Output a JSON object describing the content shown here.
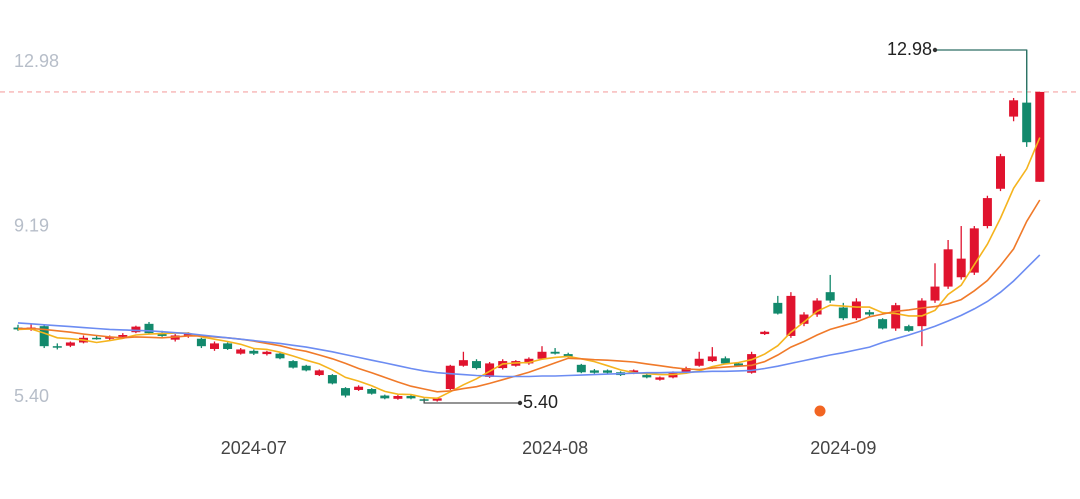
{
  "chart_data": {
    "type": "candlestick",
    "categories": [
      null,
      null,
      null,
      null,
      null,
      null,
      null,
      null,
      null,
      null,
      null,
      null,
      null,
      null,
      null,
      null,
      null,
      null,
      "2024-07",
      null,
      null,
      null,
      null,
      null,
      null,
      null,
      null,
      null,
      null,
      null,
      null,
      null,
      null,
      null,
      null,
      null,
      null,
      null,
      null,
      null,
      null,
      "2024-08",
      null,
      null,
      null,
      null,
      null,
      null,
      null,
      null,
      null,
      null,
      null,
      null,
      null,
      null,
      null,
      null,
      null,
      null,
      null,
      null,
      null,
      "2024-09",
      null,
      null,
      null,
      null,
      null,
      null,
      null,
      null,
      null,
      null,
      null,
      null,
      null,
      null,
      null
    ],
    "open": [
      7.02,
      6.98,
      7.05,
      6.62,
      6.63,
      6.7,
      6.8,
      6.78,
      6.82,
      6.92,
      7.1,
      6.9,
      6.76,
      6.85,
      6.78,
      6.56,
      6.68,
      6.46,
      6.52,
      6.45,
      6.46,
      6.3,
      6.2,
      6.0,
      6.0,
      5.72,
      5.68,
      5.7,
      5.56,
      5.49,
      5.55,
      5.48,
      5.45,
      5.7,
      6.2,
      6.3,
      5.96,
      6.15,
      6.2,
      6.25,
      6.35,
      6.5,
      6.45,
      6.22,
      6.1,
      6.1,
      6.06,
      6.04,
      6.0,
      5.9,
      5.95,
      6.05,
      6.2,
      6.3,
      6.36,
      6.25,
      6.05,
      6.88,
      7.55,
      6.84,
      7.1,
      7.3,
      7.78,
      7.45,
      7.22,
      7.35,
      7.2,
      7.0,
      7.05,
      7.05,
      7.6,
      7.9,
      8.1,
      8.2,
      9.2,
      10.0,
      11.55,
      11.85,
      10.15
    ],
    "high": [
      7.08,
      7.1,
      7.08,
      6.68,
      6.72,
      6.85,
      6.86,
      6.85,
      6.9,
      7.06,
      7.14,
      6.95,
      6.88,
      6.92,
      6.8,
      6.72,
      6.7,
      6.58,
      6.55,
      6.52,
      6.48,
      6.32,
      6.22,
      6.12,
      6.02,
      5.74,
      5.78,
      5.72,
      5.58,
      5.57,
      5.58,
      5.5,
      5.52,
      6.22,
      6.5,
      6.34,
      6.28,
      6.34,
      6.32,
      6.38,
      6.62,
      6.58,
      6.48,
      6.24,
      6.13,
      6.12,
      6.08,
      6.12,
      6.02,
      5.97,
      6.08,
      6.18,
      6.5,
      6.6,
      6.4,
      6.28,
      6.5,
      6.95,
      7.7,
      7.78,
      7.35,
      7.65,
      8.15,
      7.55,
      7.65,
      7.4,
      7.22,
      7.55,
      7.08,
      7.65,
      8.4,
      8.9,
      9.2,
      9.2,
      9.85,
      10.75,
      11.95,
      12.98,
      12.08
    ],
    "low": [
      6.95,
      6.95,
      6.58,
      6.55,
      6.6,
      6.68,
      6.76,
      6.74,
      6.8,
      6.9,
      6.88,
      6.82,
      6.72,
      6.8,
      6.58,
      6.52,
      6.54,
      6.44,
      6.43,
      6.42,
      6.34,
      6.14,
      6.08,
      5.98,
      5.8,
      5.52,
      5.66,
      5.58,
      5.48,
      5.47,
      5.48,
      5.4,
      5.43,
      5.68,
      6.18,
      6.12,
      5.94,
      6.12,
      6.18,
      6.22,
      6.33,
      6.44,
      6.38,
      6.04,
      6.03,
      6.02,
      5.98,
      6.02,
      5.93,
      5.88,
      5.93,
      6.03,
      6.18,
      6.28,
      6.23,
      6.18,
      6.03,
      6.86,
      7.3,
      6.8,
      7.05,
      7.25,
      7.55,
      7.18,
      7.18,
      7.25,
      6.98,
      6.95,
      6.93,
      6.62,
      7.55,
      7.85,
      8.05,
      8.15,
      9.15,
      9.95,
      11.45,
      10.9,
      10.15
    ],
    "close": [
      6.98,
      7.02,
      6.62,
      6.6,
      6.7,
      6.8,
      6.78,
      6.82,
      6.86,
      7.04,
      6.9,
      6.84,
      6.85,
      6.88,
      6.62,
      6.68,
      6.56,
      6.55,
      6.46,
      6.5,
      6.36,
      6.16,
      6.1,
      6.1,
      5.82,
      5.56,
      5.75,
      5.6,
      5.5,
      5.55,
      5.5,
      5.45,
      5.5,
      6.2,
      6.32,
      6.15,
      6.25,
      6.3,
      6.3,
      6.35,
      6.5,
      6.46,
      6.4,
      6.06,
      6.05,
      6.05,
      6.0,
      6.1,
      5.95,
      5.95,
      6.05,
      6.15,
      6.35,
      6.4,
      6.25,
      6.2,
      6.45,
      6.93,
      7.32,
      7.7,
      7.3,
      7.6,
      7.6,
      7.22,
      7.58,
      7.3,
      7.0,
      7.5,
      6.95,
      7.6,
      7.9,
      8.7,
      8.5,
      9.15,
      9.8,
      10.7,
      11.9,
      11.0,
      12.08
    ],
    "up_color": "#e0132e",
    "down_color": "#12896c",
    "lines": [
      {
        "color": "#f5b41e",
        "values": [
          6.98,
          6.99,
          6.9,
          6.8,
          6.78,
          6.75,
          6.7,
          6.74,
          6.79,
          6.86,
          6.88,
          6.89,
          6.9,
          6.9,
          6.82,
          6.77,
          6.72,
          6.66,
          6.57,
          6.55,
          6.49,
          6.41,
          6.32,
          6.24,
          6.11,
          5.95,
          5.87,
          5.77,
          5.65,
          5.59,
          5.58,
          5.52,
          5.5,
          5.64,
          5.79,
          5.92,
          6.08,
          6.24,
          6.26,
          6.27,
          6.34,
          6.38,
          6.4,
          6.35,
          6.29,
          6.2,
          6.11,
          6.05,
          6.03,
          6.01,
          6.01,
          6.04,
          6.09,
          6.18,
          6.24,
          6.27,
          6.33,
          6.45,
          6.63,
          6.92,
          7.14,
          7.37,
          7.5,
          7.48,
          7.46,
          7.46,
          7.34,
          7.32,
          7.27,
          7.27,
          7.39,
          7.73,
          7.93,
          8.37,
          8.81,
          9.37,
          10.01,
          10.43,
          11.1
        ]
      },
      {
        "color": "#f07a2a",
        "values": [
          7.0,
          7.0,
          6.98,
          6.95,
          6.92,
          6.88,
          6.85,
          6.82,
          6.8,
          6.82,
          6.81,
          6.8,
          6.82,
          6.84,
          6.84,
          6.82,
          6.8,
          6.77,
          6.73,
          6.68,
          6.63,
          6.56,
          6.51,
          6.43,
          6.35,
          6.25,
          6.14,
          6.05,
          5.95,
          5.85,
          5.76,
          5.7,
          5.64,
          5.66,
          5.71,
          5.75,
          5.82,
          5.9,
          5.98,
          6.06,
          6.16,
          6.26,
          6.36,
          6.35,
          6.33,
          6.32,
          6.3,
          6.28,
          6.24,
          6.2,
          6.16,
          6.13,
          6.12,
          6.15,
          6.17,
          6.19,
          6.21,
          6.29,
          6.43,
          6.6,
          6.72,
          6.86,
          6.98,
          7.06,
          7.14,
          7.25,
          7.31,
          7.37,
          7.4,
          7.44,
          7.47,
          7.53,
          7.62,
          7.81,
          8.03,
          8.35,
          8.71,
          9.3,
          9.76
        ]
      },
      {
        "color": "#6c8cf2",
        "values": [
          7.12,
          7.1,
          7.08,
          7.06,
          7.04,
          7.02,
          7.0,
          6.98,
          6.97,
          6.96,
          6.95,
          6.93,
          6.91,
          6.89,
          6.86,
          6.83,
          6.8,
          6.77,
          6.74,
          6.71,
          6.68,
          6.64,
          6.6,
          6.55,
          6.5,
          6.44,
          6.38,
          6.32,
          6.26,
          6.2,
          6.14,
          6.09,
          6.05,
          6.03,
          6.01,
          5.99,
          5.98,
          5.97,
          5.97,
          5.97,
          5.98,
          5.98,
          5.99,
          6.0,
          6.01,
          6.02,
          6.03,
          6.04,
          6.05,
          6.05,
          6.06,
          6.06,
          6.07,
          6.08,
          6.08,
          6.09,
          6.1,
          6.14,
          6.19,
          6.25,
          6.31,
          6.37,
          6.43,
          6.48,
          6.54,
          6.6,
          6.7,
          6.78,
          6.86,
          6.95,
          7.05,
          7.16,
          7.28,
          7.42,
          7.58,
          7.78,
          8.02,
          8.3,
          8.58
        ]
      }
    ],
    "ylim": [
      5.4,
      12.98
    ],
    "yticks": [
      {
        "value": 12.98,
        "label": "12.98"
      },
      {
        "value": 9.19,
        "label": "9.19"
      },
      {
        "value": 5.4,
        "label": "5.40"
      }
    ],
    "annotations": {
      "max": "12.98",
      "min": "5.40"
    }
  }
}
